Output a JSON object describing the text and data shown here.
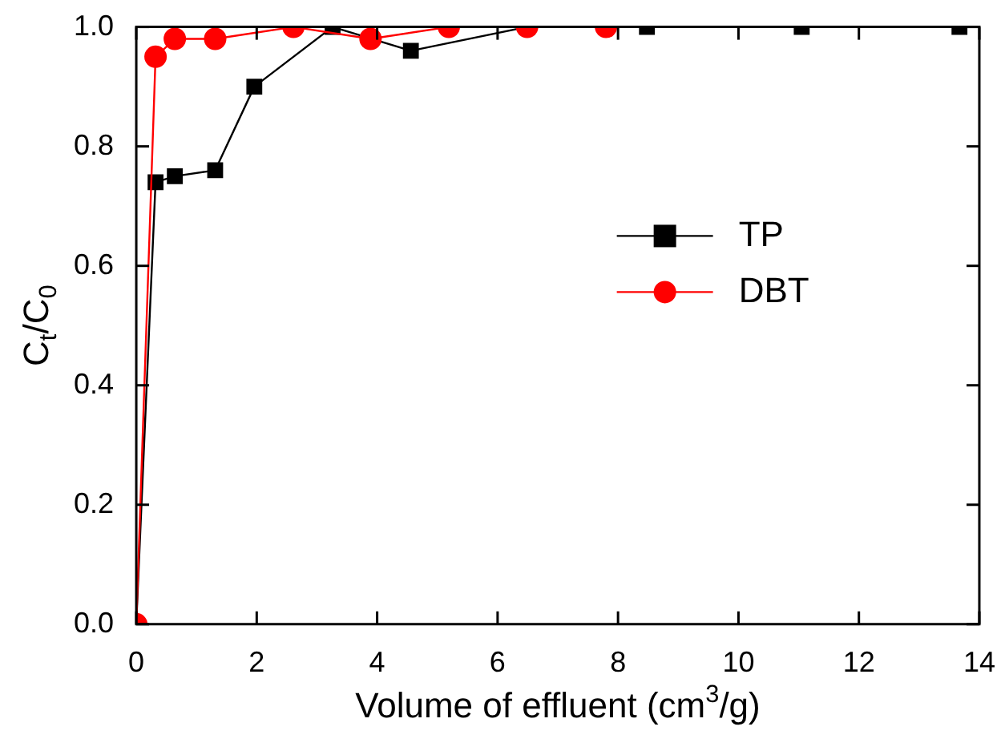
{
  "chart_data": {
    "type": "line",
    "xlabel": "Volume of effluent (cm$^{3}$/g)",
    "ylabel": "C$_{t}$/C$_{0}$",
    "xlim": [
      0,
      14
    ],
    "xticks": [
      0,
      2,
      4,
      6,
      8,
      10,
      12,
      14
    ],
    "ylim": [
      0,
      1
    ],
    "yticks": [
      {
        "value": 0,
        "label": "0.0"
      },
      {
        "value": 0.2,
        "label": "0.2"
      },
      {
        "value": 0.4,
        "label": "0.4"
      },
      {
        "value": 0.6,
        "label": "0.6"
      },
      {
        "value": 0.8,
        "label": "0.8"
      },
      {
        "value": 1,
        "label": "1.0"
      }
    ],
    "grid": false,
    "legend": "right",
    "line_style": "solid",
    "series": [
      {
        "name": "TP",
        "color": "#000000",
        "marker": "square",
        "x": [
          0,
          0.32,
          0.64,
          1.31,
          1.96,
          3.26,
          4.56,
          6.49,
          8.48,
          11.05,
          13.67
        ],
        "values": [
          0,
          0.74,
          0.75,
          0.76,
          0.9,
          1.0,
          0.96,
          1.0,
          1.0,
          1.0,
          1.0
        ]
      },
      {
        "name": "DBT",
        "color": "#ff0000",
        "marker": "circle",
        "x": [
          0,
          0.32,
          0.64,
          1.31,
          2.61,
          3.89,
          5.19,
          6.49,
          7.8
        ],
        "values": [
          0,
          0.95,
          0.98,
          0.98,
          1.0,
          0.98,
          1.0,
          1.0,
          1.0
        ]
      }
    ]
  }
}
